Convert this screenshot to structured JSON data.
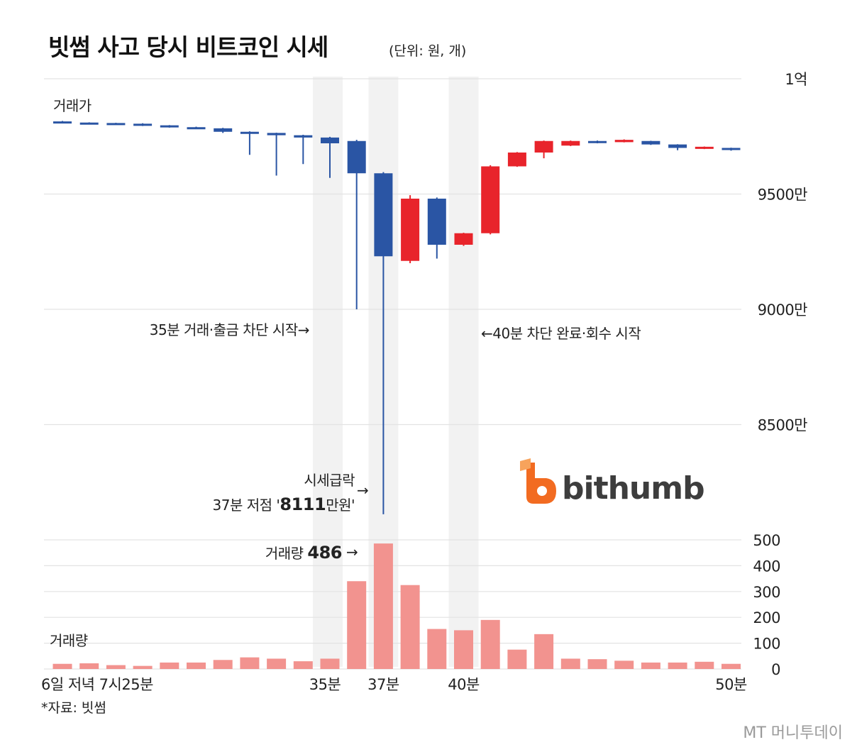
{
  "title": "빗썸 사고 당시 비트코인 시세",
  "unit_note": "(단위: 원, 개)",
  "source": "*자료: 빗썸",
  "watermark": "MT 머니투데이",
  "brand": "bithumb",
  "colors": {
    "down": "#2A55A4",
    "up": "#E8242B",
    "volume": "#F2938F",
    "grid": "#E3E3E3",
    "band": "#F2F2F2",
    "brand_orange": "#F26B21"
  },
  "price_panel": {
    "label": "거래가",
    "y_ticks": [
      {
        "value": 100000000,
        "label": "1억"
      },
      {
        "value": 95000000,
        "label": "9500만"
      },
      {
        "value": 90000000,
        "label": "9000만"
      },
      {
        "value": 85000000,
        "label": "8500만"
      }
    ]
  },
  "volume_panel": {
    "label": "거래량",
    "y_ticks": [
      {
        "value": 0,
        "label": "0"
      },
      {
        "value": 100,
        "label": "100"
      },
      {
        "value": 200,
        "label": "200"
      },
      {
        "value": 300,
        "label": "300"
      },
      {
        "value": 400,
        "label": "400"
      },
      {
        "value": 500,
        "label": "500"
      }
    ]
  },
  "annotations": {
    "start_block": "35분 거래·출금 차단 시작→",
    "end_block": "←40분 차단 완료·회수 시작",
    "crash_line1": "시세급락",
    "crash_line2_prefix": "37분 저점 '",
    "crash_low_value": "8111",
    "crash_line2_suffix": "만원'",
    "volume_prefix": "거래량",
    "volume_value": "486",
    "arrow": "→"
  },
  "chart_data": {
    "type": "candlestick",
    "title": "빗썸 사고 당시 비트코인 시세",
    "x_tick_labels": [
      {
        "index": 0,
        "label": "6일 저녁 7시25분"
      },
      {
        "index": 10,
        "label": "35분"
      },
      {
        "index": 12,
        "label": "37분"
      },
      {
        "index": 15,
        "label": "40분"
      },
      {
        "index": 25,
        "label": "50분"
      }
    ],
    "highlight_indices": [
      10,
      12,
      15
    ],
    "price_ylim": [
      80000000,
      100000000
    ],
    "volume_ylim": [
      0,
      500
    ],
    "candles": [
      {
        "open": 98150000,
        "close": 98120000,
        "high": 98170000,
        "low": 98080000,
        "volume": 20
      },
      {
        "open": 98100000,
        "close": 98080000,
        "high": 98110000,
        "low": 98060000,
        "volume": 22
      },
      {
        "open": 98080000,
        "close": 98060000,
        "high": 98090000,
        "low": 98040000,
        "volume": 15
      },
      {
        "open": 98050000,
        "close": 97980000,
        "high": 98070000,
        "low": 97950000,
        "volume": 12
      },
      {
        "open": 97980000,
        "close": 97900000,
        "high": 97990000,
        "low": 97880000,
        "volume": 25
      },
      {
        "open": 97900000,
        "close": 97850000,
        "high": 97920000,
        "low": 97830000,
        "volume": 25
      },
      {
        "open": 97850000,
        "close": 97700000,
        "high": 97870000,
        "low": 97650000,
        "volume": 35
      },
      {
        "open": 97700000,
        "close": 97620000,
        "high": 97720000,
        "low": 96700000,
        "volume": 45
      },
      {
        "open": 97650000,
        "close": 97550000,
        "high": 97660000,
        "low": 95800000,
        "volume": 40
      },
      {
        "open": 97550000,
        "close": 97450000,
        "high": 97570000,
        "low": 96300000,
        "volume": 30
      },
      {
        "open": 97450000,
        "close": 97200000,
        "high": 97480000,
        "low": 95700000,
        "volume": 40
      },
      {
        "open": 97300000,
        "close": 95900000,
        "high": 97350000,
        "low": 90000000,
        "volume": 340
      },
      {
        "open": 95900000,
        "close": 92300000,
        "high": 95950000,
        "low": 81110000,
        "volume": 486
      },
      {
        "open": 92100000,
        "close": 94800000,
        "high": 94950000,
        "low": 92000000,
        "volume": 325
      },
      {
        "open": 94800000,
        "close": 92800000,
        "high": 94850000,
        "low": 92200000,
        "volume": 155
      },
      {
        "open": 92800000,
        "close": 93300000,
        "high": 93320000,
        "low": 92750000,
        "volume": 150
      },
      {
        "open": 93300000,
        "close": 96200000,
        "high": 96250000,
        "low": 93250000,
        "volume": 190
      },
      {
        "open": 96200000,
        "close": 96800000,
        "high": 96820000,
        "low": 96180000,
        "volume": 75
      },
      {
        "open": 96800000,
        "close": 97300000,
        "high": 97320000,
        "low": 96550000,
        "volume": 135
      },
      {
        "open": 97100000,
        "close": 97300000,
        "high": 97320000,
        "low": 97080000,
        "volume": 40
      },
      {
        "open": 97300000,
        "close": 97250000,
        "high": 97320000,
        "low": 97200000,
        "volume": 38
      },
      {
        "open": 97250000,
        "close": 97350000,
        "high": 97370000,
        "low": 97240000,
        "volume": 32
      },
      {
        "open": 97300000,
        "close": 97150000,
        "high": 97310000,
        "low": 97130000,
        "volume": 25
      },
      {
        "open": 97150000,
        "close": 97000000,
        "high": 97160000,
        "low": 96900000,
        "volume": 25
      },
      {
        "open": 96980000,
        "close": 97050000,
        "high": 97060000,
        "low": 96950000,
        "volume": 28
      },
      {
        "open": 97000000,
        "close": 96950000,
        "high": 97010000,
        "low": 96880000,
        "volume": 20
      }
    ]
  }
}
